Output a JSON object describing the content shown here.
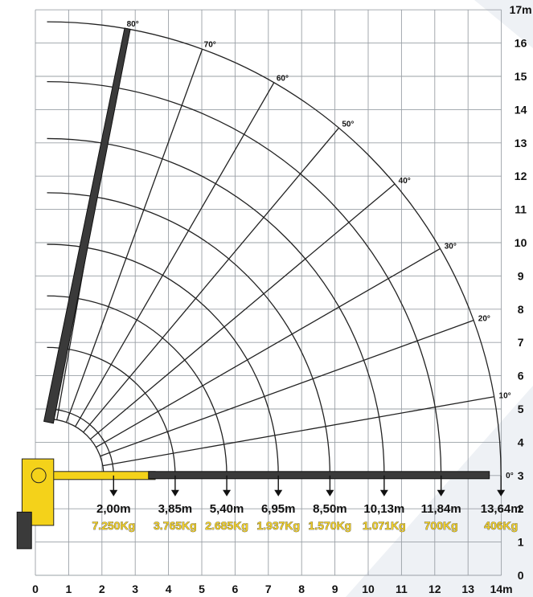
{
  "chart_data": {
    "type": "crane-load-chart",
    "x_axis": {
      "unit_label": "14m",
      "ticks": [
        "0",
        "1",
        "2",
        "3",
        "4",
        "5",
        "6",
        "7",
        "8",
        "9",
        "10",
        "11",
        "12",
        "13"
      ],
      "range": [
        0,
        14
      ]
    },
    "y_axis": {
      "unit_label": "17m",
      "ticks": [
        "0",
        "1",
        "2",
        "3",
        "4",
        "5",
        "6",
        "7",
        "8",
        "9",
        "10",
        "11",
        "12",
        "13",
        "14",
        "15",
        "16"
      ],
      "range": [
        0,
        17
      ]
    },
    "boom_pivot": {
      "x": 0.35,
      "y": 3.0
    },
    "angles": [
      {
        "label": "0°",
        "deg": 0
      },
      {
        "label": "10°",
        "deg": 10
      },
      {
        "label": "20°",
        "deg": 20
      },
      {
        "label": "30°",
        "deg": 30
      },
      {
        "label": "40°",
        "deg": 40
      },
      {
        "label": "50°",
        "deg": 50
      },
      {
        "label": "60°",
        "deg": 60
      },
      {
        "label": "70°",
        "deg": 70
      },
      {
        "label": "80°",
        "deg": 80
      }
    ],
    "outreach_capacity": [
      {
        "radius_label": "2,00m",
        "radius_m": 2.0,
        "load_label": "7.250Kg"
      },
      {
        "radius_label": "3,85m",
        "radius_m": 3.85,
        "load_label": "3.765Kg"
      },
      {
        "radius_label": "5,40m",
        "radius_m": 5.4,
        "load_label": "2.685Kg"
      },
      {
        "radius_label": "6,95m",
        "radius_m": 6.95,
        "load_label": "1.937Kg"
      },
      {
        "radius_label": "8,50m",
        "radius_m": 8.5,
        "load_label": "1.570Kg"
      },
      {
        "radius_label": "10,13m",
        "radius_m": 10.13,
        "load_label": "1.071Kg"
      },
      {
        "radius_label": "11,84m",
        "radius_m": 11.84,
        "load_label": "700Kg"
      },
      {
        "radius_label": "13,64m",
        "radius_m": 13.64,
        "load_label": "406Kg"
      }
    ],
    "colors": {
      "boom_yellow": "#f4d21a",
      "boom_dark": "#3a3a3a",
      "capacity_text": "#f0cf2a"
    },
    "grid": true
  }
}
